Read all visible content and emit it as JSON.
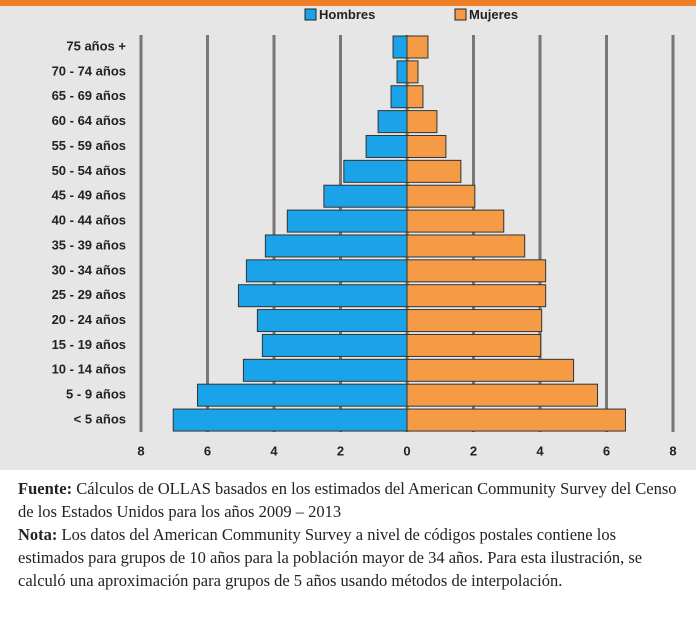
{
  "chart_data": {
    "type": "pyramid",
    "categories": [
      "75 años +",
      "70 - 74 años",
      "65 - 69 años",
      "60 - 64 años",
      "55 - 59 años",
      "50 - 54 años",
      "45 - 49 años",
      "40 - 44 años",
      "35 - 39 años",
      "30 - 34 años",
      "25 - 29 años",
      "20 - 24 años",
      "15 - 19 años",
      "10 - 14 años",
      "5 - 9 años",
      "< 5 años"
    ],
    "series": [
      {
        "name": "Hombres",
        "color": "#1aa3e8",
        "values": [
          -0.42,
          -0.3,
          -0.48,
          -0.87,
          -1.23,
          -1.9,
          -2.5,
          -3.6,
          -4.26,
          -4.83,
          -5.07,
          -4.5,
          -4.35,
          -4.92,
          -6.3,
          -7.03
        ]
      },
      {
        "name": "Mujeres",
        "color": "#f59b45",
        "values": [
          0.63,
          0.33,
          0.48,
          0.9,
          1.17,
          1.62,
          2.04,
          2.91,
          3.54,
          4.17,
          4.17,
          4.05,
          4.02,
          5.01,
          5.73,
          6.57
        ]
      }
    ],
    "xlim": [
      -8,
      8
    ],
    "xticks": [
      {
        "value": -8,
        "label": "8"
      },
      {
        "value": -6,
        "label": "6"
      },
      {
        "value": -4,
        "label": "4"
      },
      {
        "value": -2,
        "label": "2"
      },
      0,
      2,
      4,
      6,
      8
    ],
    "grid": true
  },
  "footer": {
    "source_label": "Fuente:",
    "source_text": " Cálculos de OLLAS basados en  los estimados del American Community Survey del Censo de los Estados Unidos para los años 2009 – 2013",
    "note_label": "Nota:",
    "note_text": " Los datos del American Community Survey a nivel de códigos postales contiene los estimados para grupos de 10 años para la población mayor de 34 años. Para esta ilustración, se calculó una aproximación para grupos de 5 años usando métodos de interpolación."
  }
}
